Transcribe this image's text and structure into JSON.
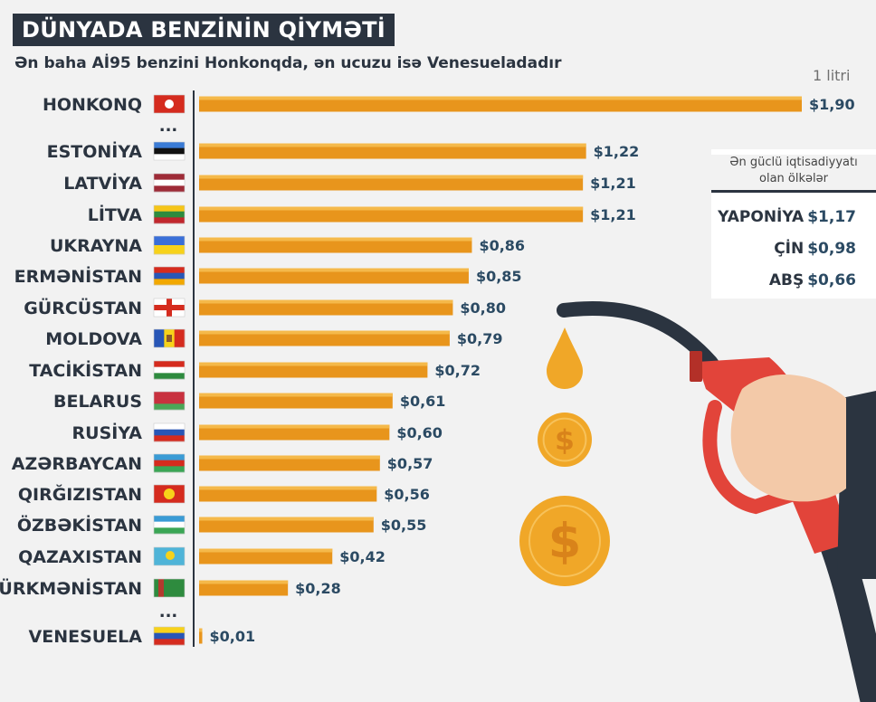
{
  "title": "DÜNYADA BENZİNİN QİYMƏTİ",
  "subtitle": "Ən baha Aİ95 benzini Honkonqda, ən ucuzu isə Venesueladadır",
  "unit": "1 litri",
  "ellipsis": "...",
  "chart_data": {
    "type": "bar",
    "orientation": "horizontal",
    "categories": [
      "HONKONQ",
      "ESTONİYA",
      "LATVİYA",
      "LİTVA",
      "UKRAYNA",
      "ERMƏNİSTAN",
      "GÜRCÜSTAN",
      "MOLDOVA",
      "TACİKİSTAN",
      "BELARUS",
      "RUSİYA",
      "AZƏRBAYCAN",
      "QIRĞIZISTAN",
      "ÖZBƏKİSTAN",
      "QAZAXISTAN",
      "TÜRKMƏNİSTAN",
      "VENESUELA"
    ],
    "values": [
      1.9,
      1.22,
      1.21,
      1.21,
      0.86,
      0.85,
      0.8,
      0.79,
      0.72,
      0.61,
      0.6,
      0.57,
      0.56,
      0.55,
      0.42,
      0.28,
      0.01
    ],
    "value_labels": [
      "$1,90",
      "$1,22",
      "$1,21",
      "$1,21",
      "$0,86",
      "$0,85",
      "$0,80",
      "$0,79",
      "$0,72",
      "$0,61",
      "$0,60",
      "$0,57",
      "$0,56",
      "$0,55",
      "$0,42",
      "$0,28",
      "$0,01"
    ],
    "bar_color": "#e8951c",
    "bar_highlight": "#f5b94a"
  },
  "flags": [
    {
      "type": "hk"
    },
    {
      "type": "h",
      "colors": [
        "#3a7bd5",
        "#111111",
        "#ffffff"
      ]
    },
    {
      "type": "h",
      "colors": [
        "#9e2b37",
        "#ffffff",
        "#9e2b37"
      ]
    },
    {
      "type": "h",
      "colors": [
        "#f5c518",
        "#2e8b3e",
        "#c1272d"
      ]
    },
    {
      "type": "h",
      "colors": [
        "#3a6fd8",
        "#f7d21a"
      ]
    },
    {
      "type": "h",
      "colors": [
        "#d52b1e",
        "#2856b6",
        "#f2a800"
      ]
    },
    {
      "type": "ge"
    },
    {
      "type": "v",
      "colors": [
        "#2856b6",
        "#f7d21a",
        "#d52b1e"
      ]
    },
    {
      "type": "h",
      "colors": [
        "#d52b1e",
        "#ffffff",
        "#2e8b3e"
      ]
    },
    {
      "type": "h",
      "colors": [
        "#c8313e",
        "#c8313e",
        "#4aa657"
      ]
    },
    {
      "type": "h",
      "colors": [
        "#ffffff",
        "#2856b6",
        "#d52b1e"
      ]
    },
    {
      "type": "h",
      "colors": [
        "#3a9bd5",
        "#d52b1e",
        "#3aa655"
      ]
    },
    {
      "type": "kg"
    },
    {
      "type": "h",
      "colors": [
        "#3a9bd5",
        "#ffffff",
        "#3aa655"
      ]
    },
    {
      "type": "kz"
    },
    {
      "type": "tm"
    },
    {
      "type": "h",
      "colors": [
        "#f7d21a",
        "#2856b6",
        "#d52b1e"
      ]
    }
  ],
  "side_panel": {
    "title_line1": "Ən güclü iqtisadiyyatı",
    "title_line2": "olan ölkələr",
    "rows": [
      {
        "country": "YAPONİYA",
        "value": "$1,17"
      },
      {
        "country": "ÇİN",
        "value": "$0,98"
      },
      {
        "country": "ABŞ",
        "value": "$0,66"
      }
    ]
  },
  "illustration": {
    "pump_color": "#e2443a",
    "hose_color": "#2b3440",
    "coin_color": "#f0a728",
    "coin_symbol": "$",
    "drop_color": "#f0a728",
    "sleeve_color": "#2b3440",
    "hand_color": "#f3c9a8"
  }
}
